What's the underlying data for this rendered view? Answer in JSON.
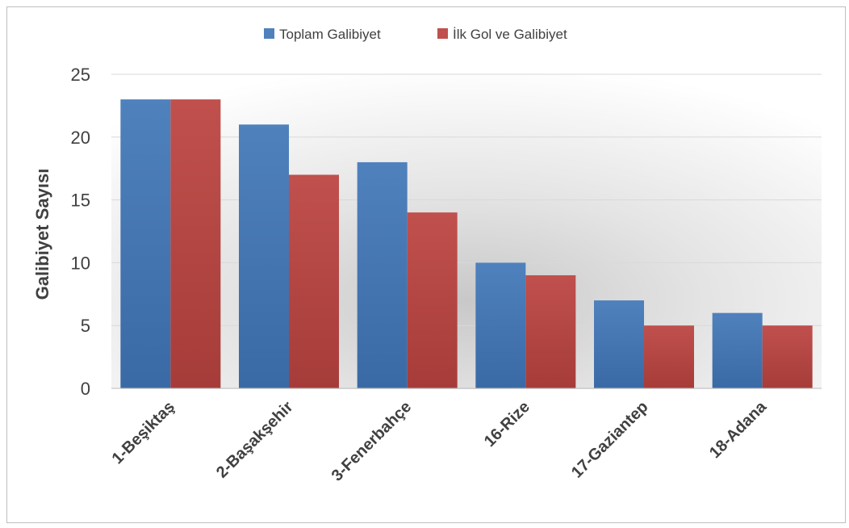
{
  "chart_data": {
    "type": "bar",
    "title": "",
    "xlabel": "",
    "ylabel": "Galibiyet Sayısı",
    "ylim": [
      0,
      25
    ],
    "yticks": [
      0,
      5,
      10,
      15,
      20,
      25
    ],
    "grid": true,
    "legend_position": "top-center",
    "categories": [
      "1-Beşiktaş",
      "2-Başakşehir",
      "3-Fenerbahçe",
      "16-Rize",
      "17-Gaziantep",
      "18-Adana"
    ],
    "series": [
      {
        "name": "Toplam Galibiyet",
        "color": "#4f81bd",
        "values": [
          23,
          21,
          18,
          10,
          7,
          6
        ]
      },
      {
        "name": "İlk Gol ve Galibiyet",
        "color": "#c0504d",
        "values": [
          23,
          17,
          14,
          9,
          5,
          5
        ]
      }
    ]
  }
}
